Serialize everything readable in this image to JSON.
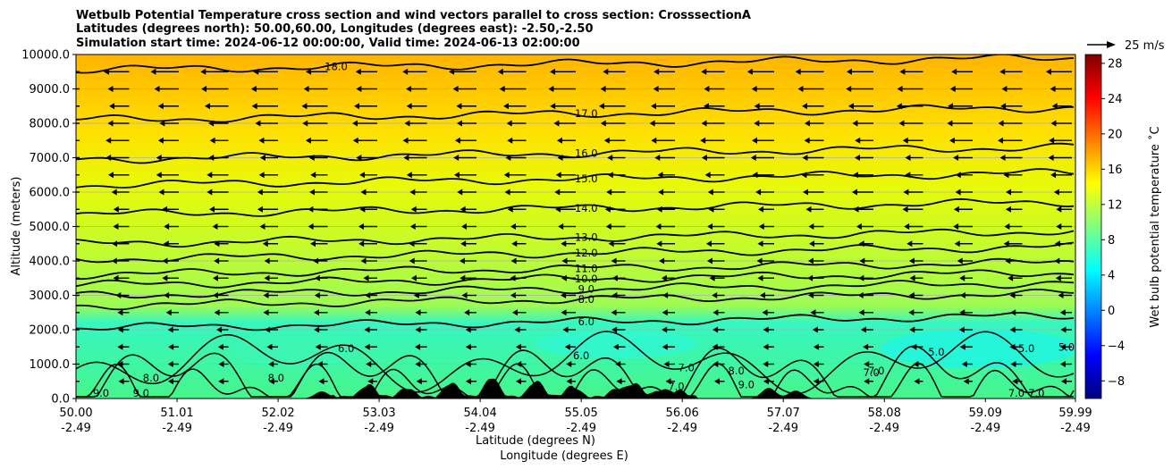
{
  "chart_data": {
    "type": "contour",
    "title_lines": [
      "Wetbulb Potential Temperature cross section and wind vectors parallel to cross section: CrosssectionA",
      "Latitudes (degrees north): 50.00,60.00, Longitudes (degrees east): -2.50,-2.50",
      "Simulation start time: 2024-06-12 00:00:00, Valid time: 2024-06-13 02:00:00"
    ],
    "xlabel_lines": [
      "Latitude (degrees N)",
      "Longitude (degrees E)"
    ],
    "ylabel": "Altitude (meters)",
    "xlim": [
      50.0,
      59.99
    ],
    "ylim": [
      0,
      10000
    ],
    "x_ticks": [
      {
        "lat": 50.0,
        "lat_label": "50.00",
        "lon_label": "-2.49"
      },
      {
        "lat": 51.01,
        "lat_label": "51.01",
        "lon_label": "-2.49"
      },
      {
        "lat": 52.02,
        "lat_label": "52.02",
        "lon_label": "-2.49"
      },
      {
        "lat": 53.03,
        "lat_label": "53.03",
        "lon_label": "-2.49"
      },
      {
        "lat": 54.04,
        "lat_label": "54.04",
        "lon_label": "-2.49"
      },
      {
        "lat": 55.05,
        "lat_label": "55.05",
        "lon_label": "-2.49"
      },
      {
        "lat": 56.06,
        "lat_label": "56.06",
        "lon_label": "-2.49"
      },
      {
        "lat": 57.07,
        "lat_label": "57.07",
        "lon_label": "-2.49"
      },
      {
        "lat": 58.08,
        "lat_label": "58.08",
        "lon_label": "-2.49"
      },
      {
        "lat": 59.09,
        "lat_label": "59.09",
        "lon_label": "-2.49"
      },
      {
        "lat": 59.99,
        "lat_label": "59.99",
        "lon_label": "-2.49"
      }
    ],
    "y_ticks": [
      {
        "value": 0,
        "label": "0.0"
      },
      {
        "value": 1000,
        "label": "1000.0"
      },
      {
        "value": 2000,
        "label": "2000.0"
      },
      {
        "value": 3000,
        "label": "3000.0"
      },
      {
        "value": 4000,
        "label": "4000.0"
      },
      {
        "value": 5000,
        "label": "5000.0"
      },
      {
        "value": 6000,
        "label": "6000.0"
      },
      {
        "value": 7000,
        "label": "7000.0"
      },
      {
        "value": 8000,
        "label": "8000.0"
      },
      {
        "value": 9000,
        "label": "9000.0"
      },
      {
        "value": 10000,
        "label": "10000.0"
      }
    ],
    "grid": "horizontal",
    "colorbar": {
      "label": "Wet bulb potential temperature ˚C",
      "vmin": -10,
      "vmax": 29,
      "ticks": [
        {
          "value": -8,
          "label": "−8"
        },
        {
          "value": -4,
          "label": "−4"
        },
        {
          "value": 0,
          "label": "0"
        },
        {
          "value": 4,
          "label": "4"
        },
        {
          "value": 8,
          "label": "8"
        },
        {
          "value": 12,
          "label": "12"
        },
        {
          "value": 16,
          "label": "16"
        },
        {
          "value": 20,
          "label": "20"
        },
        {
          "value": 24,
          "label": "24"
        },
        {
          "value": 28,
          "label": "28"
        }
      ],
      "colormap": "jet"
    },
    "quiver_key": {
      "label": "25 m/s",
      "speed": 25
    },
    "contour_levels": [
      {
        "value": 18.0,
        "label": "18.0",
        "alt": 9550,
        "label_lat": 52.6
      },
      {
        "value": 17.0,
        "label": "17.0",
        "alt": 8100,
        "label_lat": 55.1
      },
      {
        "value": 16.0,
        "label": "16.0",
        "alt": 6950,
        "label_lat": 55.1
      },
      {
        "value": 15.0,
        "label": "15.0",
        "alt": 6200,
        "label_lat": 55.1
      },
      {
        "value": 14.0,
        "label": "14.0",
        "alt": 5350,
        "label_lat": 55.1
      },
      {
        "value": 13.0,
        "label": "13.0",
        "alt": 4500,
        "label_lat": 55.1
      },
      {
        "value": 12.0,
        "label": "12.0",
        "alt": 4050,
        "label_lat": 55.1
      },
      {
        "value": 11.0,
        "label": "11.0",
        "alt": 3600,
        "label_lat": 55.1
      },
      {
        "value": 10.0,
        "label": "10.0",
        "alt": 3300,
        "label_lat": 55.1
      },
      {
        "value": 9.0,
        "label": "9.0",
        "alt": 3000,
        "label_lat": 55.1
      },
      {
        "value": 8.0,
        "label": "8.0",
        "alt": 2700,
        "label_lat": 55.1
      },
      {
        "value": 6.0,
        "label": "6.0",
        "alt": 2050,
        "label_lat": 55.1
      }
    ],
    "low_contour_labels": [
      {
        "label": "6.0",
        "lat": 55.05,
        "alt": 1250
      },
      {
        "label": "6.0",
        "lat": 52.7,
        "alt": 1450
      },
      {
        "label": "5.0",
        "lat": 58.6,
        "alt": 1350
      },
      {
        "label": "5.0",
        "lat": 59.5,
        "alt": 1450
      },
      {
        "label": "5.0",
        "lat": 59.9,
        "alt": 1500
      },
      {
        "label": "7.0",
        "lat": 56.1,
        "alt": 900
      },
      {
        "label": "7.0",
        "lat": 57.95,
        "alt": 750
      },
      {
        "label": "7.0",
        "lat": 58.0,
        "alt": 800
      },
      {
        "label": "7.0",
        "lat": 56.0,
        "alt": 350
      },
      {
        "label": "7.0",
        "lat": 59.4,
        "alt": 150
      },
      {
        "label": "7.0",
        "lat": 59.6,
        "alt": 150
      },
      {
        "label": "8.0",
        "lat": 56.6,
        "alt": 800
      },
      {
        "label": "8.0",
        "lat": 50.75,
        "alt": 600
      },
      {
        "label": "8.0",
        "lat": 52.0,
        "alt": 600
      },
      {
        "label": "9.0",
        "lat": 56.7,
        "alt": 400
      },
      {
        "label": "9.0",
        "lat": 50.25,
        "alt": 150
      },
      {
        "label": "9.0",
        "lat": 50.65,
        "alt": 150
      }
    ]
  }
}
